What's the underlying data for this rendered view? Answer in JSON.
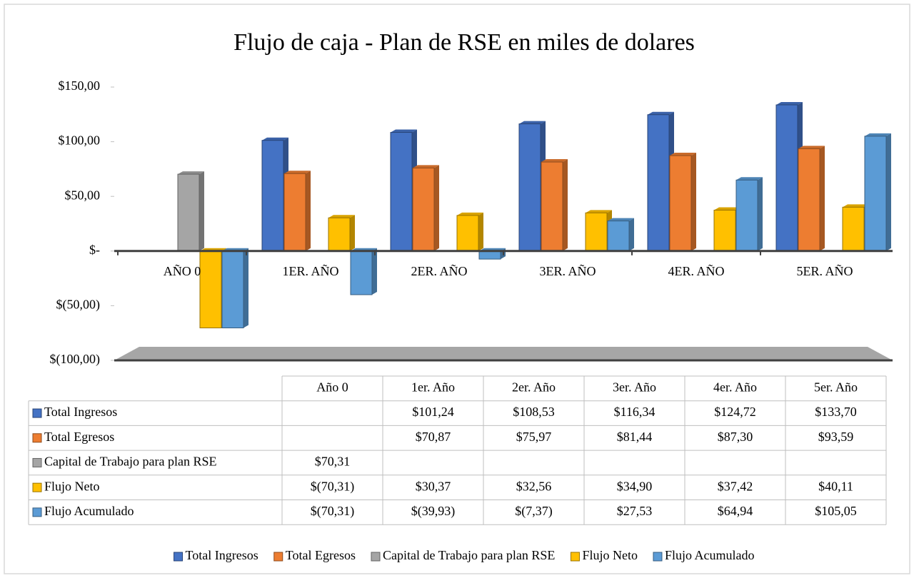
{
  "chart_data": {
    "type": "bar3d",
    "title": "Flujo de caja - Plan de RSE en miles de dolares",
    "categories": [
      "AÑO 0",
      "1ER. AÑO",
      "2ER. AÑO",
      "3ER. AÑO",
      "4ER. AÑO",
      "5ER. AÑO"
    ],
    "table_columns": [
      "Año 0",
      "1er. Año",
      "2er. Año",
      "3er. Año",
      "4er. Año",
      "5er. Año"
    ],
    "series": [
      {
        "name": "Total Ingresos",
        "color": "#4472c4",
        "values": [
          null,
          101.24,
          108.53,
          116.34,
          124.72,
          133.7
        ],
        "value_labels": [
          null,
          "$101,24",
          "$108,53",
          "$116,34",
          "$124,72",
          "$133,70"
        ]
      },
      {
        "name": "Total Egresos",
        "color": "#ed7d31",
        "values": [
          null,
          70.87,
          75.97,
          81.44,
          87.3,
          93.59
        ],
        "value_labels": [
          null,
          "$70,87",
          "$75,97",
          "$81,44",
          "$87,30",
          "$93,59"
        ]
      },
      {
        "name": "Capital de Trabajo para plan RSE",
        "color": "#a5a5a5",
        "values": [
          70.31,
          null,
          null,
          null,
          null,
          null
        ],
        "value_labels": [
          "$70,31",
          null,
          null,
          null,
          null,
          null
        ]
      },
      {
        "name": "Flujo Neto",
        "color": "#ffc000",
        "values": [
          -70.31,
          30.37,
          32.56,
          34.9,
          37.42,
          40.11
        ],
        "value_labels": [
          "$(70,31)",
          "$30,37",
          "$32,56",
          "$34,90",
          "$37,42",
          "$40,11"
        ]
      },
      {
        "name": "Flujo Acumulado",
        "color": "#5b9bd5",
        "values": [
          -70.31,
          -39.93,
          -7.37,
          27.53,
          64.94,
          105.05
        ],
        "value_labels": [
          "$(70,31)",
          "$(39,93)",
          "$(7,37)",
          "$27,53",
          "$64,94",
          "$105,05"
        ]
      }
    ],
    "ylim": [
      -100,
      150
    ],
    "yticks": [
      {
        "value": 150,
        "label": "$150,00"
      },
      {
        "value": 100,
        "label": "$100,00"
      },
      {
        "value": 50,
        "label": "$50,00"
      },
      {
        "value": 0,
        "label": "$-"
      },
      {
        "value": -50,
        "label": "$(50,00)"
      },
      {
        "value": -100,
        "label": "$(100,00)"
      }
    ],
    "legend": "bottom"
  }
}
